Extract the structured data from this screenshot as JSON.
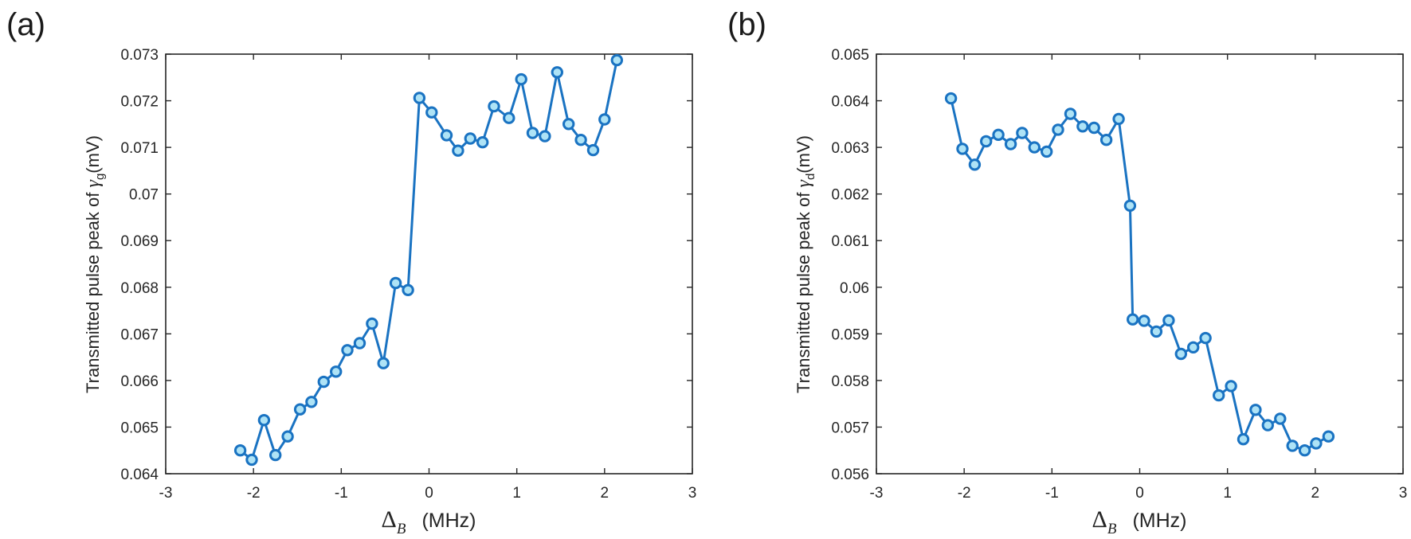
{
  "chart_data": [
    {
      "type": "line",
      "panel_label": "(a)",
      "xlabel": {
        "symbol": "Δ",
        "subscript": "B",
        "unit": "(MHz)"
      },
      "ylabel": {
        "prefix": "Transmitted pulse peak of ",
        "symbol": "γ",
        "subscript": "g",
        "suffix": "(mV)"
      },
      "xlim": [
        -3,
        3
      ],
      "ylim": [
        0.064,
        0.073
      ],
      "xticks": [
        -3,
        -2,
        -1,
        0,
        1,
        2,
        3
      ],
      "xtick_labels": [
        "-3",
        "-2",
        "-1",
        "0",
        "1",
        "2",
        "3"
      ],
      "yticks": [
        0.064,
        0.065,
        0.066,
        0.067,
        0.068,
        0.069,
        0.07,
        0.071,
        0.072,
        0.073
      ],
      "ytick_labels": [
        "0.064",
        "0.065",
        "0.066",
        "0.067",
        "0.068",
        "0.069",
        "0.07",
        "0.071",
        "0.072",
        "0.073"
      ],
      "series": [
        {
          "name": "γg",
          "x": [
            -2.15,
            -2.02,
            -1.88,
            -1.75,
            -1.61,
            -1.47,
            -1.34,
            -1.2,
            -1.06,
            -0.93,
            -0.79,
            -0.65,
            -0.52,
            -0.38,
            -0.24,
            -0.11,
            0.03,
            0.2,
            0.33,
            0.47,
            0.61,
            0.74,
            0.91,
            1.05,
            1.18,
            1.32,
            1.46,
            1.59,
            1.73,
            1.87,
            2.0,
            2.14
          ],
          "y": [
            0.0645,
            0.0643,
            0.06515,
            0.0644,
            0.0648,
            0.06538,
            0.06554,
            0.06597,
            0.06619,
            0.06665,
            0.0668,
            0.06722,
            0.06637,
            0.06809,
            0.06794,
            0.07206,
            0.07175,
            0.07126,
            0.07093,
            0.07119,
            0.07111,
            0.07188,
            0.07163,
            0.07246,
            0.07131,
            0.07124,
            0.07261,
            0.0715,
            0.07116,
            0.07094,
            0.0716,
            0.07287
          ]
        }
      ]
    },
    {
      "type": "line",
      "panel_label": "(b)",
      "xlabel": {
        "symbol": "Δ",
        "subscript": "B",
        "unit": "(MHz)"
      },
      "ylabel": {
        "prefix": "Transmitted pulse peak of ",
        "symbol": "γ",
        "subscript": "d",
        "suffix": "(mV)"
      },
      "xlim": [
        -3,
        3
      ],
      "ylim": [
        0.056,
        0.065
      ],
      "xticks": [
        -3,
        -2,
        -1,
        0,
        1,
        2,
        3
      ],
      "xtick_labels": [
        "-3",
        "-2",
        "-1",
        "0",
        "1",
        "2",
        "3"
      ],
      "yticks": [
        0.056,
        0.057,
        0.058,
        0.059,
        0.06,
        0.061,
        0.062,
        0.063,
        0.064,
        0.065
      ],
      "ytick_labels": [
        "0.056",
        "0.057",
        "0.058",
        "0.059",
        "0.06",
        "0.061",
        "0.062",
        "0.063",
        "0.064",
        "0.065"
      ],
      "series": [
        {
          "name": "γd",
          "x": [
            -2.15,
            -2.02,
            -1.88,
            -1.75,
            -1.61,
            -1.47,
            -1.34,
            -1.2,
            -1.06,
            -0.93,
            -0.79,
            -0.65,
            -0.52,
            -0.38,
            -0.24,
            -0.11,
            -0.08,
            0.05,
            0.19,
            0.33,
            0.47,
            0.61,
            0.75,
            0.9,
            1.04,
            1.18,
            1.32,
            1.46,
            1.6,
            1.74,
            1.88,
            2.01,
            2.15
          ],
          "y": [
            0.06405,
            0.06297,
            0.06263,
            0.06313,
            0.06327,
            0.06307,
            0.06331,
            0.063,
            0.06291,
            0.06338,
            0.06372,
            0.06345,
            0.06342,
            0.06316,
            0.06361,
            0.06175,
            0.05931,
            0.05928,
            0.05905,
            0.05929,
            0.05857,
            0.05871,
            0.05891,
            0.05768,
            0.05788,
            0.05674,
            0.05737,
            0.05704,
            0.05718,
            0.0566,
            0.0565,
            0.05665,
            0.0568
          ]
        }
      ]
    }
  ]
}
